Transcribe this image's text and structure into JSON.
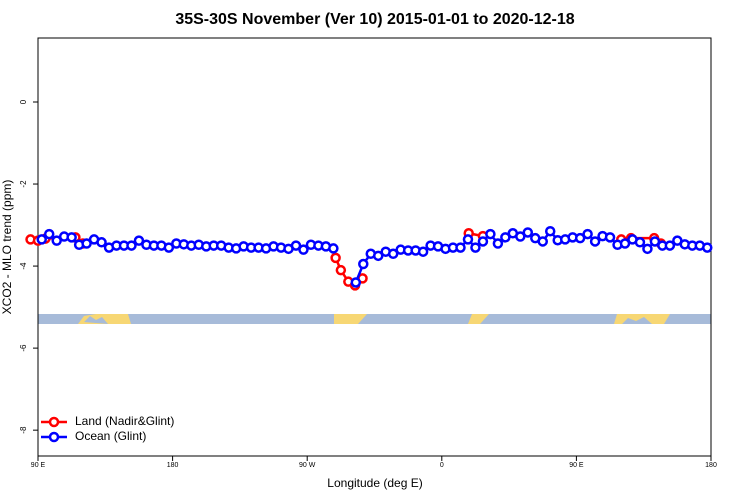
{
  "chart_data": {
    "type": "line",
    "title": "35S-30S November (Ver 10)   2015-01-01 to 2020-12-18",
    "x_label": "Longitude (deg E)",
    "y_label": "XCO2 - MLO trend (ppm)",
    "xlim": [
      90,
      540
    ],
    "ylim": [
      -8.63,
      1.56
    ],
    "xticks": [
      {
        "value": 90,
        "label": "90 E"
      },
      180,
      {
        "value": 270,
        "label": "90 W"
      },
      {
        "value": 360,
        "label": "0"
      },
      {
        "value": 450,
        "label": "90 E"
      },
      {
        "value": 540,
        "label": "180"
      }
    ],
    "yticks": [
      0,
      -2,
      -4,
      -6,
      -8
    ],
    "legend_position": "bottom-left",
    "series": [
      {
        "name": "Land (Nadir&Glint)",
        "color": "#ff0000",
        "x": [
          85,
          90,
          95,
          115,
          120,
          null,
          289,
          292.5,
          297.5,
          302,
          307,
          null,
          378,
          387.5,
          null,
          480,
          486.5,
          502,
          506.5
        ],
        "values": [
          -3.35,
          -3.38,
          -3.33,
          -3.3,
          -3.45,
          null,
          -3.8,
          -4.1,
          -4.38,
          -4.47,
          -4.3,
          null,
          -3.2,
          -3.27,
          null,
          -3.35,
          -3.32,
          -3.32,
          -3.45
        ]
      },
      {
        "name": "Ocean (Glint)",
        "color": "#0000ff",
        "x": [
          92.5,
          97.5,
          102.5,
          107.5,
          112.5,
          117.5,
          122.5,
          127.5,
          132.5,
          137.5,
          142.5,
          147.5,
          152.5,
          157.5,
          162.5,
          167.5,
          172.5,
          177.5,
          182.5,
          187.5,
          192.5,
          197.5,
          202.5,
          207.5,
          212.5,
          217.5,
          222.5,
          227.5,
          232.5,
          237.5,
          242.5,
          247.5,
          252.5,
          257.5,
          262.5,
          267.5,
          272.5,
          277.5,
          282.5,
          287.5,
          292.5,
          297.5,
          302.5,
          307.5,
          312.5,
          317.5,
          322.5,
          327.5,
          332.5,
          337.5,
          342.5,
          347.5,
          352.5,
          357.5,
          362.5,
          367.5,
          372.5,
          377.5,
          382.5,
          387.5,
          392.5,
          397.5,
          402.5,
          407.5,
          412.5,
          417.5,
          422.5,
          427.5,
          432.5,
          437.5,
          442.5,
          447.5,
          452.5,
          457.5,
          462.5,
          467.5,
          472.5,
          477.5,
          482.5,
          487.5,
          492.5,
          497.5,
          502.5,
          507.5,
          512.5,
          517.5,
          522.5,
          527.5,
          532.5,
          537.5
        ],
        "values": [
          -3.35,
          -3.22,
          -3.38,
          -3.28,
          -3.3,
          -3.48,
          -3.45,
          -3.35,
          -3.42,
          -3.55,
          -3.5,
          -3.5,
          -3.5,
          -3.38,
          -3.48,
          -3.5,
          -3.5,
          -3.55,
          -3.45,
          -3.47,
          -3.5,
          -3.48,
          -3.52,
          -3.5,
          -3.5,
          -3.55,
          -3.57,
          -3.52,
          -3.55,
          -3.55,
          -3.57,
          -3.52,
          -3.55,
          -3.58,
          -3.5,
          -3.6,
          -3.48,
          -3.5,
          -3.52,
          -3.57,
          null,
          null,
          -4.4,
          -3.95,
          -3.7,
          -3.75,
          -3.65,
          -3.7,
          -3.6,
          -3.62,
          -3.62,
          -3.65,
          -3.5,
          -3.52,
          -3.58,
          -3.55,
          -3.55,
          -3.35,
          -3.55,
          -3.4,
          -3.22,
          -3.45,
          -3.3,
          -3.2,
          -3.28,
          -3.18,
          -3.32,
          -3.4,
          -3.15,
          -3.37,
          -3.35,
          -3.3,
          -3.32,
          -3.22,
          -3.4,
          -3.27,
          -3.3,
          -3.48,
          -3.45,
          -3.35,
          -3.42,
          -3.58,
          -3.4,
          -3.5,
          -3.5,
          -3.38,
          -3.47,
          -3.5,
          -3.5,
          -3.55
        ]
      }
    ]
  }
}
